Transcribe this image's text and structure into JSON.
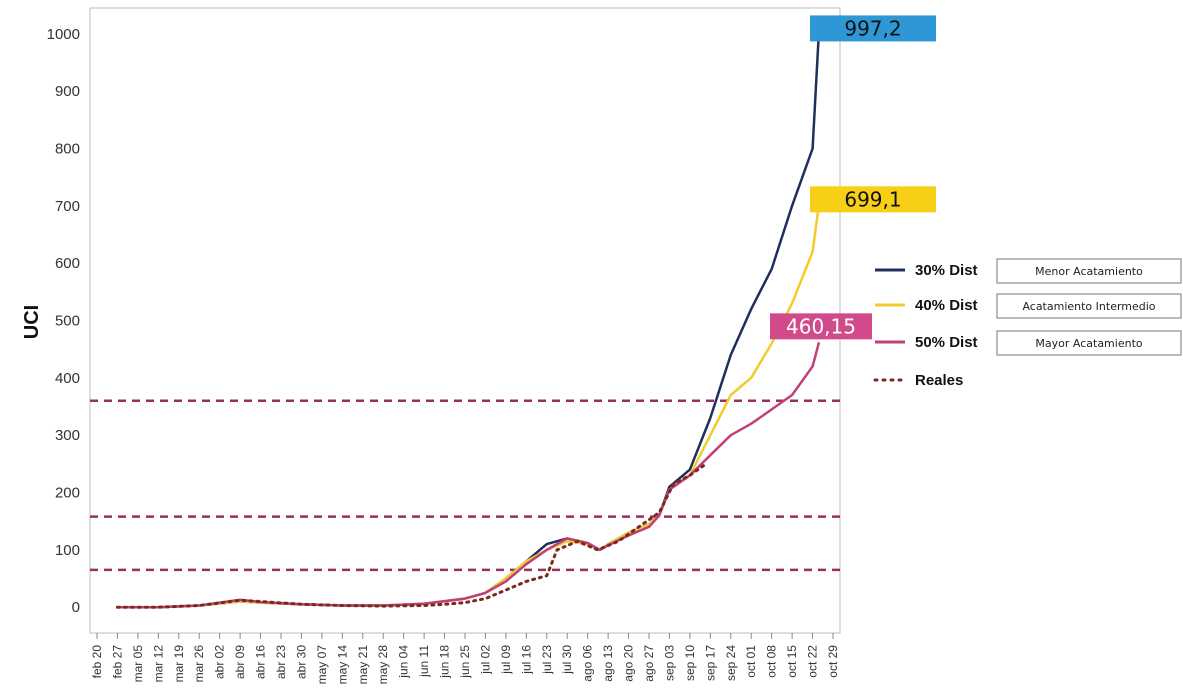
{
  "chart_data": {
    "type": "line",
    "ylabel": "UCI",
    "ylim": [
      -45,
      1045
    ],
    "yticks": [
      0,
      100,
      200,
      300,
      400,
      500,
      600,
      700,
      800,
      900,
      1000
    ],
    "categories": [
      "feb 20",
      "feb 27",
      "mar 05",
      "mar 12",
      "mar 19",
      "mar 26",
      "abr 02",
      "abr 09",
      "abr 16",
      "abr 23",
      "abr 30",
      "may 07",
      "may 14",
      "may 21",
      "may 28",
      "jun 04",
      "jun 11",
      "jun 18",
      "jun 25",
      "jul 02",
      "jul 09",
      "jul 16",
      "jul 23",
      "jul 30",
      "ago 06",
      "ago 13",
      "ago 20",
      "ago 27",
      "sep 03",
      "sep 10",
      "sep 17",
      "sep 24",
      "oct 01",
      "oct 08",
      "oct 15",
      "oct 22",
      "oct 29"
    ],
    "thresholds": [
      65,
      158,
      360
    ],
    "threshold_color": "#9b2d63",
    "legend_position": "right",
    "series": [
      {
        "name": "30% Dist",
        "scenario": "Menor Acatamiento",
        "color": "#1f2f5c",
        "style": "solid",
        "points": [
          [
            1,
            0
          ],
          [
            3,
            0
          ],
          [
            5,
            3
          ],
          [
            7,
            10
          ],
          [
            8,
            8
          ],
          [
            10,
            5
          ],
          [
            12,
            3
          ],
          [
            14,
            3
          ],
          [
            16,
            6
          ],
          [
            18,
            15
          ],
          [
            19,
            25
          ],
          [
            20,
            50
          ],
          [
            21,
            80
          ],
          [
            22,
            110
          ],
          [
            23,
            120
          ],
          [
            24,
            110
          ],
          [
            24.6,
            100
          ],
          [
            25,
            110
          ],
          [
            26,
            130
          ],
          [
            27,
            145
          ],
          [
            27.5,
            160
          ],
          [
            28,
            210
          ],
          [
            29,
            240
          ],
          [
            30,
            330
          ],
          [
            31,
            440
          ],
          [
            32,
            520
          ],
          [
            33,
            590
          ],
          [
            34,
            700
          ],
          [
            35,
            800
          ],
          [
            35.3,
            997.2
          ]
        ]
      },
      {
        "name": "40% Dist",
        "scenario": "Acatamiento Intermedio",
        "color": "#f2cc2e",
        "style": "solid",
        "points": [
          [
            1,
            0
          ],
          [
            3,
            0
          ],
          [
            5,
            3
          ],
          [
            7,
            10
          ],
          [
            8,
            8
          ],
          [
            10,
            5
          ],
          [
            12,
            3
          ],
          [
            14,
            3
          ],
          [
            16,
            6
          ],
          [
            18,
            15
          ],
          [
            19,
            25
          ],
          [
            20,
            50
          ],
          [
            21,
            80
          ],
          [
            22,
            100
          ],
          [
            23,
            115
          ],
          [
            24,
            110
          ],
          [
            24.6,
            100
          ],
          [
            25,
            110
          ],
          [
            26,
            130
          ],
          [
            27,
            145
          ],
          [
            27.5,
            160
          ],
          [
            28,
            205
          ],
          [
            29,
            230
          ],
          [
            30,
            300
          ],
          [
            31,
            370
          ],
          [
            32,
            400
          ],
          [
            33,
            460
          ],
          [
            34,
            530
          ],
          [
            35,
            620
          ],
          [
            35.3,
            699.1
          ]
        ]
      },
      {
        "name": "50% Dist",
        "scenario": "Mayor Acatamiento",
        "color": "#c2407a",
        "style": "solid",
        "points": [
          [
            1,
            0
          ],
          [
            3,
            0
          ],
          [
            5,
            3
          ],
          [
            7,
            13
          ],
          [
            8,
            9
          ],
          [
            10,
            5
          ],
          [
            12,
            3
          ],
          [
            14,
            3
          ],
          [
            16,
            6
          ],
          [
            18,
            15
          ],
          [
            19,
            25
          ],
          [
            20,
            45
          ],
          [
            21,
            75
          ],
          [
            22,
            100
          ],
          [
            23,
            120
          ],
          [
            24,
            112
          ],
          [
            24.6,
            100
          ],
          [
            25,
            108
          ],
          [
            26,
            125
          ],
          [
            27,
            140
          ],
          [
            27.5,
            160
          ],
          [
            28,
            205
          ],
          [
            29,
            230
          ],
          [
            30,
            265
          ],
          [
            31,
            300
          ],
          [
            32,
            320
          ],
          [
            33,
            345
          ],
          [
            34,
            370
          ],
          [
            35,
            420
          ],
          [
            35.3,
            460.15
          ]
        ]
      },
      {
        "name": "Reales",
        "color": "#7a2a1e",
        "style": "dotted",
        "points": [
          [
            1,
            0
          ],
          [
            3,
            0
          ],
          [
            5,
            3
          ],
          [
            7,
            12
          ],
          [
            8,
            10
          ],
          [
            10,
            5
          ],
          [
            12,
            3
          ],
          [
            14,
            2
          ],
          [
            16,
            3
          ],
          [
            17,
            5
          ],
          [
            18,
            8
          ],
          [
            19,
            15
          ],
          [
            20,
            30
          ],
          [
            21,
            45
          ],
          [
            22,
            55
          ],
          [
            22.5,
            100
          ],
          [
            23.5,
            115
          ],
          [
            24.5,
            100
          ],
          [
            25.5,
            115
          ],
          [
            26.5,
            140
          ],
          [
            27.5,
            165
          ],
          [
            28.2,
            215
          ],
          [
            29,
            230
          ],
          [
            29.8,
            250
          ]
        ]
      }
    ],
    "callouts": [
      {
        "value": "997,2",
        "color": "#2e97d6",
        "text_color": "dark"
      },
      {
        "value": "699,1",
        "color": "#f7cf17",
        "text_color": "dark"
      },
      {
        "value": "460,15",
        "color": "#d14b8a",
        "text_color": "light"
      }
    ]
  }
}
